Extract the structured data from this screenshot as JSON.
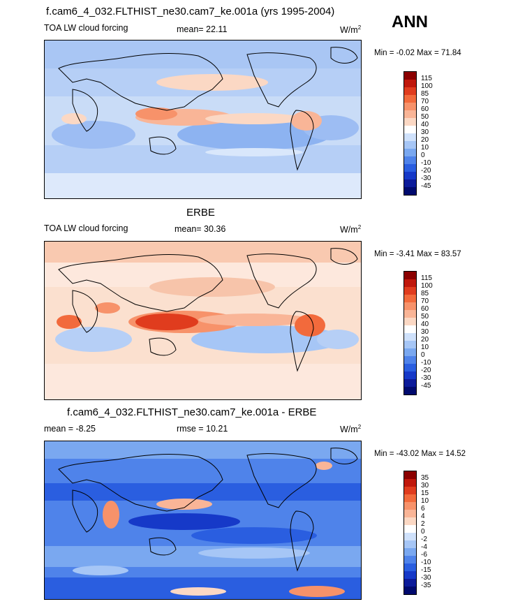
{
  "annual_label": "ANN",
  "panels": [
    {
      "title": "f.cam6_4_032.FLTHIST_ne30.cam7_ke.001a (yrs 1995-2004)",
      "left": "TOA LW cloud forcing",
      "center": "mean=  22.11",
      "units": "W/m",
      "units_sup": "2",
      "minmax": "Min =  -0.02 Max =  71.84",
      "levels": [
        "115",
        "100",
        "85",
        "70",
        "60",
        "50",
        "40",
        "30",
        "20",
        "10",
        "0",
        "-10",
        "-20",
        "-30",
        "-45"
      ]
    },
    {
      "title": "ERBE",
      "left": "TOA LW cloud forcing",
      "center": "mean=  30.36",
      "units": "W/m",
      "units_sup": "2",
      "minmax": "Min =  -3.41 Max =  83.57",
      "levels": [
        "115",
        "100",
        "85",
        "70",
        "60",
        "50",
        "40",
        "30",
        "20",
        "10",
        "0",
        "-10",
        "-20",
        "-30",
        "-45"
      ]
    },
    {
      "title": "f.cam6_4_032.FLTHIST_ne30.cam7_ke.001a - ERBE",
      "left": "mean =  -8.25",
      "center": "rmse =  10.21",
      "units": "W/m",
      "units_sup": "2",
      "minmax": "Min = -43.02 Max =  14.52",
      "levels": [
        "35",
        "30",
        "15",
        "10",
        "6",
        "4",
        "2",
        "0",
        "-2",
        "-4",
        "-6",
        "-10",
        "-15",
        "-30",
        "-35"
      ]
    }
  ],
  "colors": {
    "scale": [
      "#8b0000",
      "#c0180c",
      "#e03c1e",
      "#f26a3c",
      "#f7926a",
      "#f9b597",
      "#fbd8c4",
      "#ffffff",
      "#cfe1fb",
      "#a6c6f6",
      "#7aa8f0",
      "#4f83ea",
      "#2a5ee0",
      "#1639c8",
      "#0c1b9a",
      "#000a6e"
    ]
  }
}
